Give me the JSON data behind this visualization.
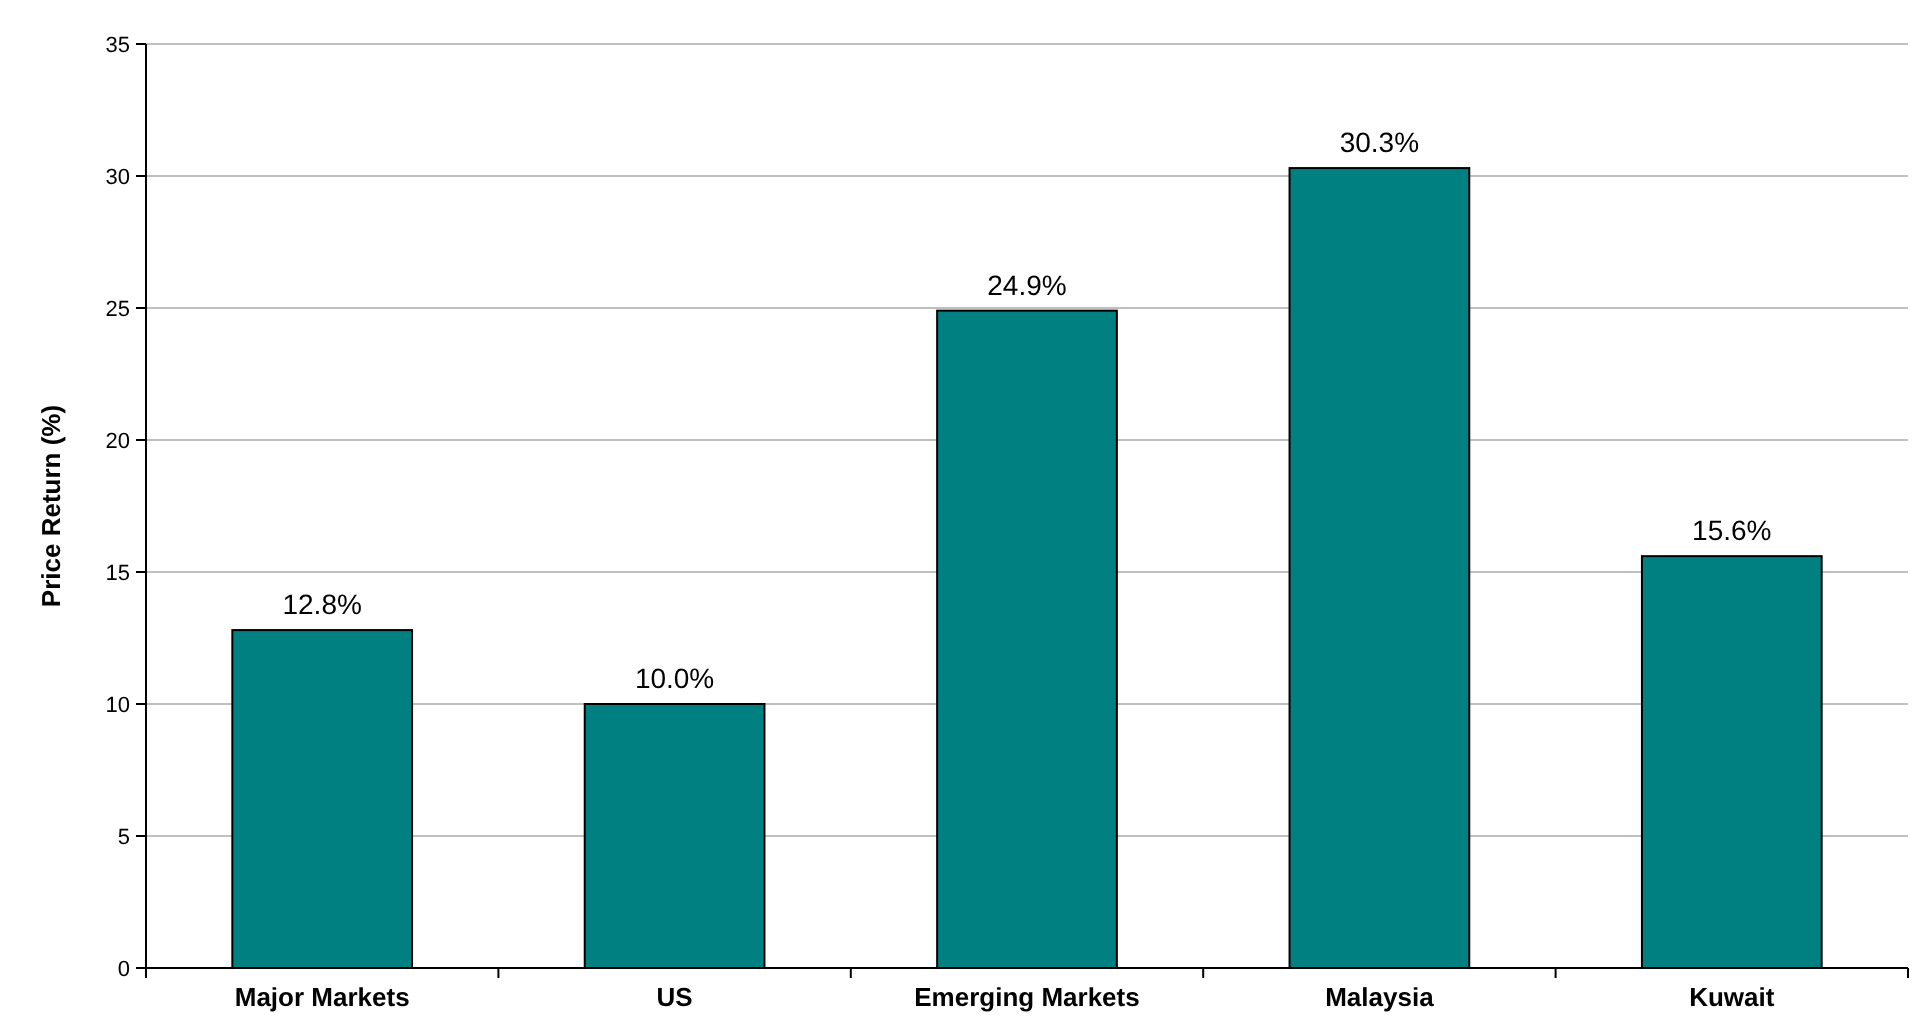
{
  "chart_data": {
    "type": "bar",
    "ylabel": "Price Return (%)",
    "categories": [
      "Major Markets",
      "US",
      "Emerging Markets",
      "Malaysia",
      "Kuwait"
    ],
    "values": [
      12.8,
      10.0,
      24.9,
      30.3,
      15.6
    ],
    "value_labels": [
      "12.8%",
      "10.0%",
      "24.9%",
      "30.3%",
      "15.6%"
    ],
    "color": "#008080",
    "ylim": [
      0,
      35
    ],
    "yticks": [
      0,
      5,
      10,
      15,
      20,
      25,
      30,
      35
    ],
    "grid": "y"
  }
}
